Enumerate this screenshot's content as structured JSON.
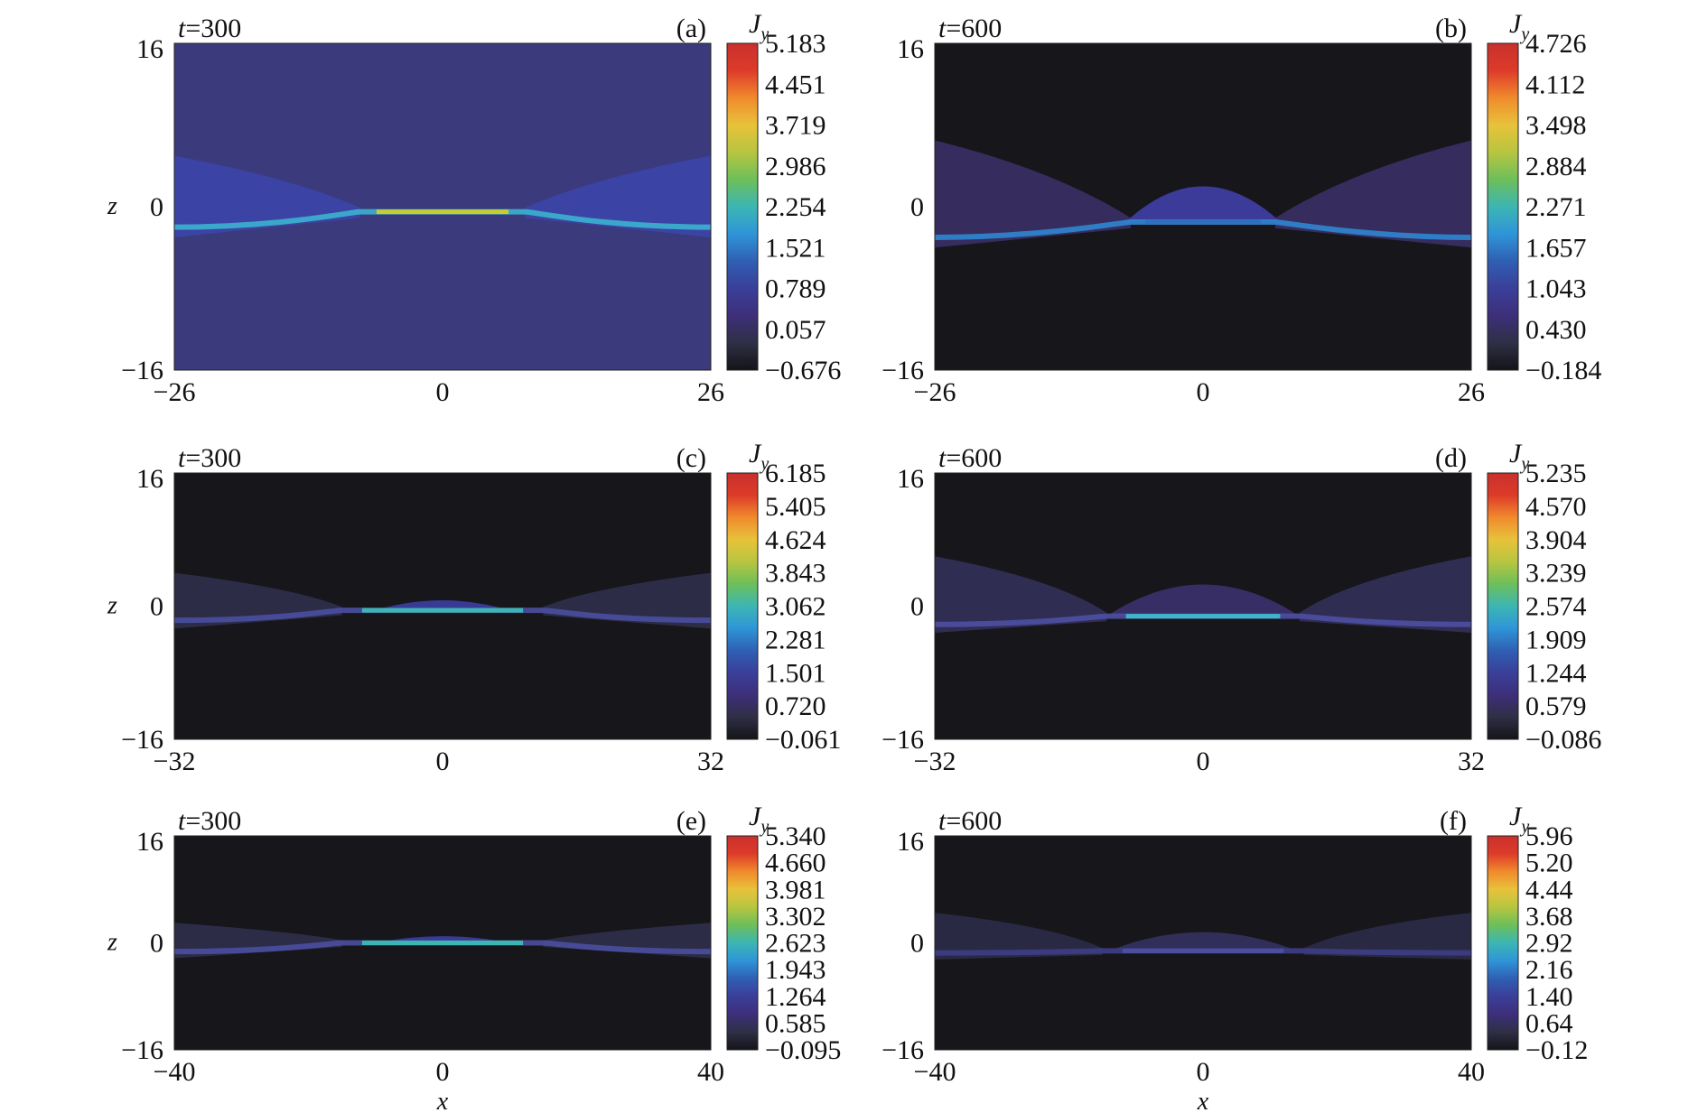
{
  "colormap_stops": [
    "#141419",
    "#2f2f45",
    "#3d2f7a",
    "#3a3f99",
    "#2f5fb3",
    "#2f95d8",
    "#3cb6b3",
    "#6cbf5a",
    "#b8c540",
    "#e8c23a",
    "#f08a2c",
    "#dd3b2a",
    "#c9302c"
  ],
  "colorbar_title_main": "J",
  "colorbar_title_sub": "y",
  "chart_data": [
    {
      "type": "heatmap",
      "panel_label": "(a)",
      "time_label": "t=300",
      "xlabel": "",
      "ylabel": "z",
      "xlim": [
        -26,
        26
      ],
      "ylim": [
        -16,
        16
      ],
      "x_ticks": [
        "−26",
        "0",
        "26"
      ],
      "y_ticks": [
        "16",
        "0",
        "−16"
      ],
      "colorbar_ticks": [
        "5.183",
        "4.451",
        "3.719",
        "2.986",
        "2.254",
        "1.521",
        "0.789",
        "0.057",
        "−0.676"
      ],
      "background_color": "#3b3a7c",
      "sheet": {
        "z_outer": -2,
        "z_center": -0.5,
        "x_bend": 8,
        "core_color": "#c8cc33",
        "edge_color": "#3cb2cf"
      },
      "lobes": [],
      "side_wedges": {
        "z_max": 5,
        "color": "#3c45a8"
      }
    },
    {
      "type": "heatmap",
      "panel_label": "(b)",
      "time_label": "t=600",
      "xlabel": "",
      "ylabel": "",
      "xlim": [
        -26,
        26
      ],
      "ylim": [
        -16,
        16
      ],
      "x_ticks": [
        "−26",
        "0",
        "26"
      ],
      "y_ticks": [
        "16",
        "0",
        "−16"
      ],
      "colorbar_ticks": [
        "4.726",
        "4.112",
        "3.498",
        "2.884",
        "2.271",
        "1.657",
        "1.043",
        "0.430",
        "−0.184"
      ],
      "background_color": "#16161b",
      "sheet": {
        "z_outer": -3,
        "z_center": -1.5,
        "x_bend": 7,
        "core_color": "#2f6fc0",
        "edge_color": "#2f86d0"
      },
      "lobes": [
        {
          "x_center": 0,
          "half_width": 7.5,
          "height": 3.5,
          "color": "#3e3da0"
        }
      ],
      "side_wedges": {
        "z_max": 6.5,
        "color": "#3a2f66"
      }
    },
    {
      "type": "heatmap",
      "panel_label": "(c)",
      "time_label": "t=300",
      "xlabel": "",
      "ylabel": "z",
      "xlim": [
        -32,
        32
      ],
      "ylim": [
        -16,
        16
      ],
      "x_ticks": [
        "−32",
        "0",
        "32"
      ],
      "y_ticks": [
        "16",
        "0",
        "−16"
      ],
      "colorbar_ticks": [
        "6.185",
        "5.405",
        "4.624",
        "3.843",
        "3.062",
        "2.281",
        "1.501",
        "0.720",
        "−0.061"
      ],
      "background_color": "#16161b",
      "sheet": {
        "z_outer": -1.7,
        "z_center": -0.5,
        "x_bend": 12,
        "core_color": "#3cb6b3",
        "edge_color": "#4a4fa0"
      },
      "lobes": [
        {
          "x_center": 0,
          "half_width": 8,
          "height": 1.2,
          "color": "#3a3d9a"
        }
      ],
      "side_wedges": {
        "z_max": 4,
        "color": "#2f2f4d"
      }
    },
    {
      "type": "heatmap",
      "panel_label": "(d)",
      "time_label": "t=600",
      "xlabel": "",
      "ylabel": "",
      "xlim": [
        -32,
        32
      ],
      "ylim": [
        -16,
        16
      ],
      "x_ticks": [
        "−32",
        "0",
        "32"
      ],
      "y_ticks": [
        "16",
        "0",
        "−16"
      ],
      "colorbar_ticks": [
        "5.235",
        "4.570",
        "3.904",
        "3.239",
        "2.574",
        "1.909",
        "1.244",
        "0.579",
        "−0.086"
      ],
      "background_color": "#16161b",
      "sheet": {
        "z_outer": -2.2,
        "z_center": -1.2,
        "x_bend": 11.5,
        "core_color": "#3cb6c8",
        "edge_color": "#4e4fa2"
      },
      "lobes": [
        {
          "x_center": 0,
          "half_width": 11.5,
          "height": 3.8,
          "color": "#3a2f6a"
        }
      ],
      "side_wedges": {
        "z_max": 6,
        "color": "#33305a"
      }
    },
    {
      "type": "heatmap",
      "panel_label": "(e)",
      "time_label": "t=300",
      "xlabel": "x",
      "ylabel": "z",
      "xlim": [
        -40,
        40
      ],
      "ylim": [
        -16,
        16
      ],
      "x_ticks": [
        "−40",
        "0",
        "40"
      ],
      "y_ticks": [
        "16",
        "0",
        "−16"
      ],
      "colorbar_ticks": [
        "5.340",
        "4.660",
        "3.981",
        "3.302",
        "2.623",
        "1.943",
        "1.264",
        "0.585",
        "−0.095"
      ],
      "background_color": "#16161b",
      "sheet": {
        "z_outer": -1.3,
        "z_center": 0,
        "x_bend": 15,
        "core_color": "#3cb6b3",
        "edge_color": "#4a4fa0"
      },
      "lobes": [
        {
          "x_center": 0,
          "half_width": 10,
          "height": 1.0,
          "color": "#3a3d9a"
        }
      ],
      "side_wedges": {
        "z_max": 3,
        "color": "#2f2f4d"
      }
    },
    {
      "type": "heatmap",
      "panel_label": "(f)",
      "time_label": "t=600",
      "xlabel": "x",
      "ylabel": "",
      "xlim": [
        -40,
        40
      ],
      "ylim": [
        -16,
        16
      ],
      "x_ticks": [
        "−40",
        "0",
        "40"
      ],
      "y_ticks": [
        "16",
        "0",
        "−16"
      ],
      "colorbar_ticks": [
        "5.96",
        "5.20",
        "4.44",
        "3.68",
        "2.92",
        "2.16",
        "1.40",
        "0.64",
        "−0.12"
      ],
      "background_color": "#16161b",
      "sheet": {
        "z_outer": -1.5,
        "z_center": -1.2,
        "x_bend": 15,
        "core_color": "#4a4fa0",
        "edge_color": "#3d3d86"
      },
      "lobes": [
        {
          "x_center": 0,
          "half_width": 14,
          "height": 2.8,
          "color": "#33305e"
        }
      ],
      "side_wedges": {
        "z_max": 4.5,
        "color": "#2c2b48"
      }
    }
  ]
}
